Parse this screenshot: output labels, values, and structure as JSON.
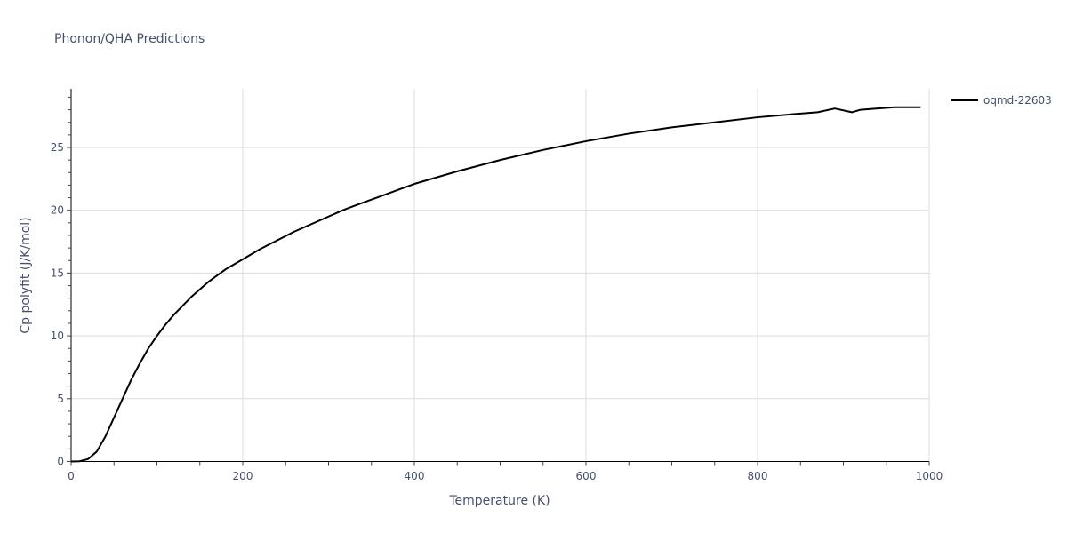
{
  "title": "Phonon/QHA Predictions",
  "legend": {
    "items": [
      {
        "label": "oqmd-22603",
        "color": "#000000"
      }
    ]
  },
  "axes": {
    "x": {
      "title": "Temperature (K)",
      "ticks": [
        "0",
        "200",
        "400",
        "600",
        "800",
        "1000"
      ]
    },
    "y": {
      "title": "Cp polyfit (J/K/mol)",
      "ticks": [
        "0",
        "5",
        "10",
        "15",
        "20",
        "25"
      ]
    }
  },
  "chart_data": {
    "type": "line",
    "title": "Phonon/QHA Predictions",
    "xlabel": "Temperature (K)",
    "ylabel": "Cp polyfit (J/K/mol)",
    "xlim": [
      0,
      1000
    ],
    "ylim": [
      0,
      29.7
    ],
    "grid": true,
    "legend_position": "right",
    "series": [
      {
        "name": "oqmd-22603",
        "color": "#000000",
        "x": [
          0,
          10,
          20,
          30,
          40,
          50,
          60,
          70,
          80,
          90,
          100,
          110,
          120,
          130,
          140,
          150,
          160,
          170,
          180,
          190,
          200,
          220,
          240,
          260,
          280,
          300,
          320,
          340,
          360,
          380,
          400,
          450,
          500,
          550,
          600,
          650,
          700,
          750,
          800,
          850,
          870,
          890,
          910,
          920,
          940,
          960,
          990
        ],
        "y": [
          0,
          0.02,
          0.2,
          0.8,
          2.0,
          3.5,
          5.0,
          6.5,
          7.8,
          9.0,
          10.0,
          10.9,
          11.7,
          12.4,
          13.1,
          13.7,
          14.3,
          14.8,
          15.3,
          15.7,
          16.1,
          16.9,
          17.6,
          18.3,
          18.9,
          19.5,
          20.1,
          20.6,
          21.1,
          21.6,
          22.1,
          23.1,
          24.0,
          24.8,
          25.5,
          26.1,
          26.6,
          27.0,
          27.4,
          27.7,
          27.8,
          28.1,
          27.8,
          28.0,
          28.1,
          28.2,
          28.2
        ]
      }
    ]
  }
}
